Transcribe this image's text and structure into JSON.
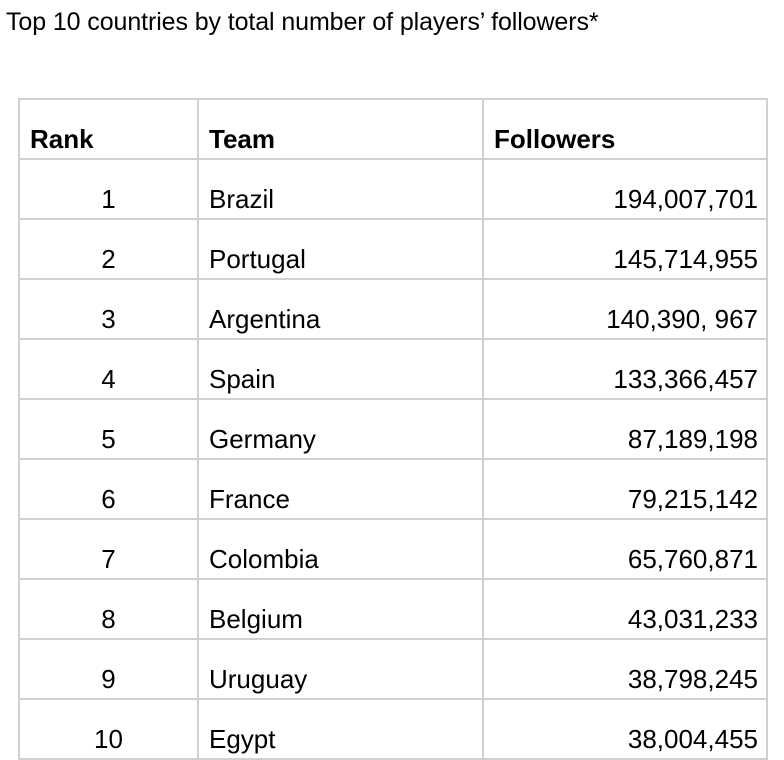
{
  "title": "Top 10 countries by total number of players’ followers*",
  "table": {
    "headers": [
      "Rank",
      "Team",
      "Followers"
    ],
    "rows": [
      {
        "rank": "1",
        "team": "Brazil",
        "followers": "194,007,701"
      },
      {
        "rank": "2",
        "team": "Portugal",
        "followers": "145,714,955"
      },
      {
        "rank": "3",
        "team": "Argentina",
        "followers": "140,390, 967"
      },
      {
        "rank": "4",
        "team": "Spain",
        "followers": "133,366,457"
      },
      {
        "rank": "5",
        "team": "Germany",
        "followers": "87,189,198"
      },
      {
        "rank": "6",
        "team": "France",
        "followers": "79,215,142"
      },
      {
        "rank": "7",
        "team": "Colombia",
        "followers": "65,760,871"
      },
      {
        "rank": "8",
        "team": "Belgium",
        "followers": "43,031,233"
      },
      {
        "rank": "9",
        "team": "Uruguay",
        "followers": "38,798,245"
      },
      {
        "rank": "10",
        "team": "Egypt",
        "followers": "38,004,455"
      }
    ]
  }
}
